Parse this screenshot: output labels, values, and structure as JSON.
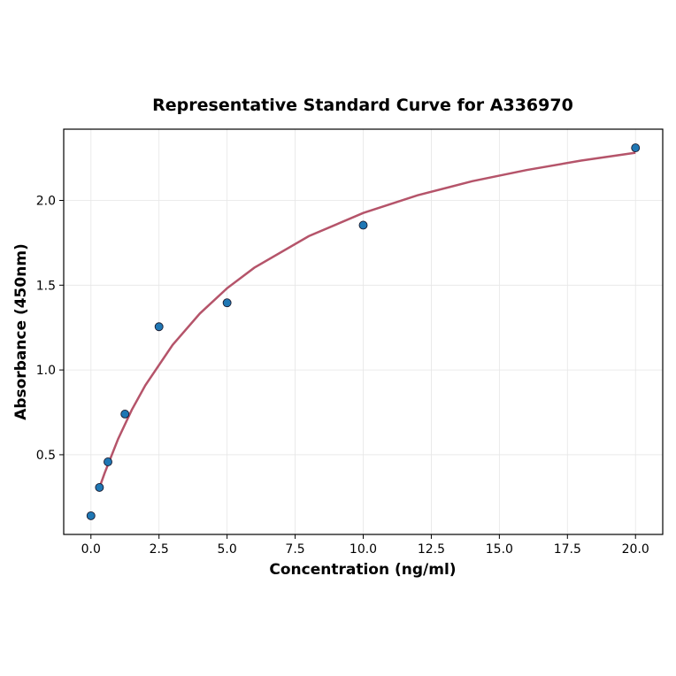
{
  "chart_data": {
    "type": "scatter",
    "title": "Representative Standard Curve for A336970",
    "xlabel": "Concentration (ng/ml)",
    "ylabel": "Absorbance (450nm)",
    "xlim": [
      -1.0,
      21.0
    ],
    "ylim": [
      0.03,
      2.42
    ],
    "grid": true,
    "xticks": [
      "0.0",
      "2.5",
      "5.0",
      "7.5",
      "10.0",
      "12.5",
      "15.0",
      "17.5",
      "20.0"
    ],
    "yticks": [
      "0.5",
      "1.0",
      "1.5",
      "2.0"
    ],
    "points": {
      "x": [
        0,
        0.3125,
        0.625,
        1.25,
        2.5,
        5,
        10,
        20
      ],
      "y": [
        0.14,
        0.307,
        0.458,
        0.74,
        1.255,
        1.396,
        1.854,
        2.31
      ],
      "color": "#1f77b4"
    },
    "fit_curve": {
      "x": [
        0.3125,
        0.5,
        1,
        1.5,
        2,
        3,
        4,
        5,
        6,
        8,
        10,
        12,
        14,
        16,
        18,
        20
      ],
      "y": [
        0.306,
        0.391,
        0.593,
        0.764,
        0.91,
        1.148,
        1.333,
        1.482,
        1.603,
        1.789,
        1.926,
        2.03,
        2.113,
        2.179,
        2.235,
        2.281
      ],
      "color": "#b5546a"
    }
  }
}
